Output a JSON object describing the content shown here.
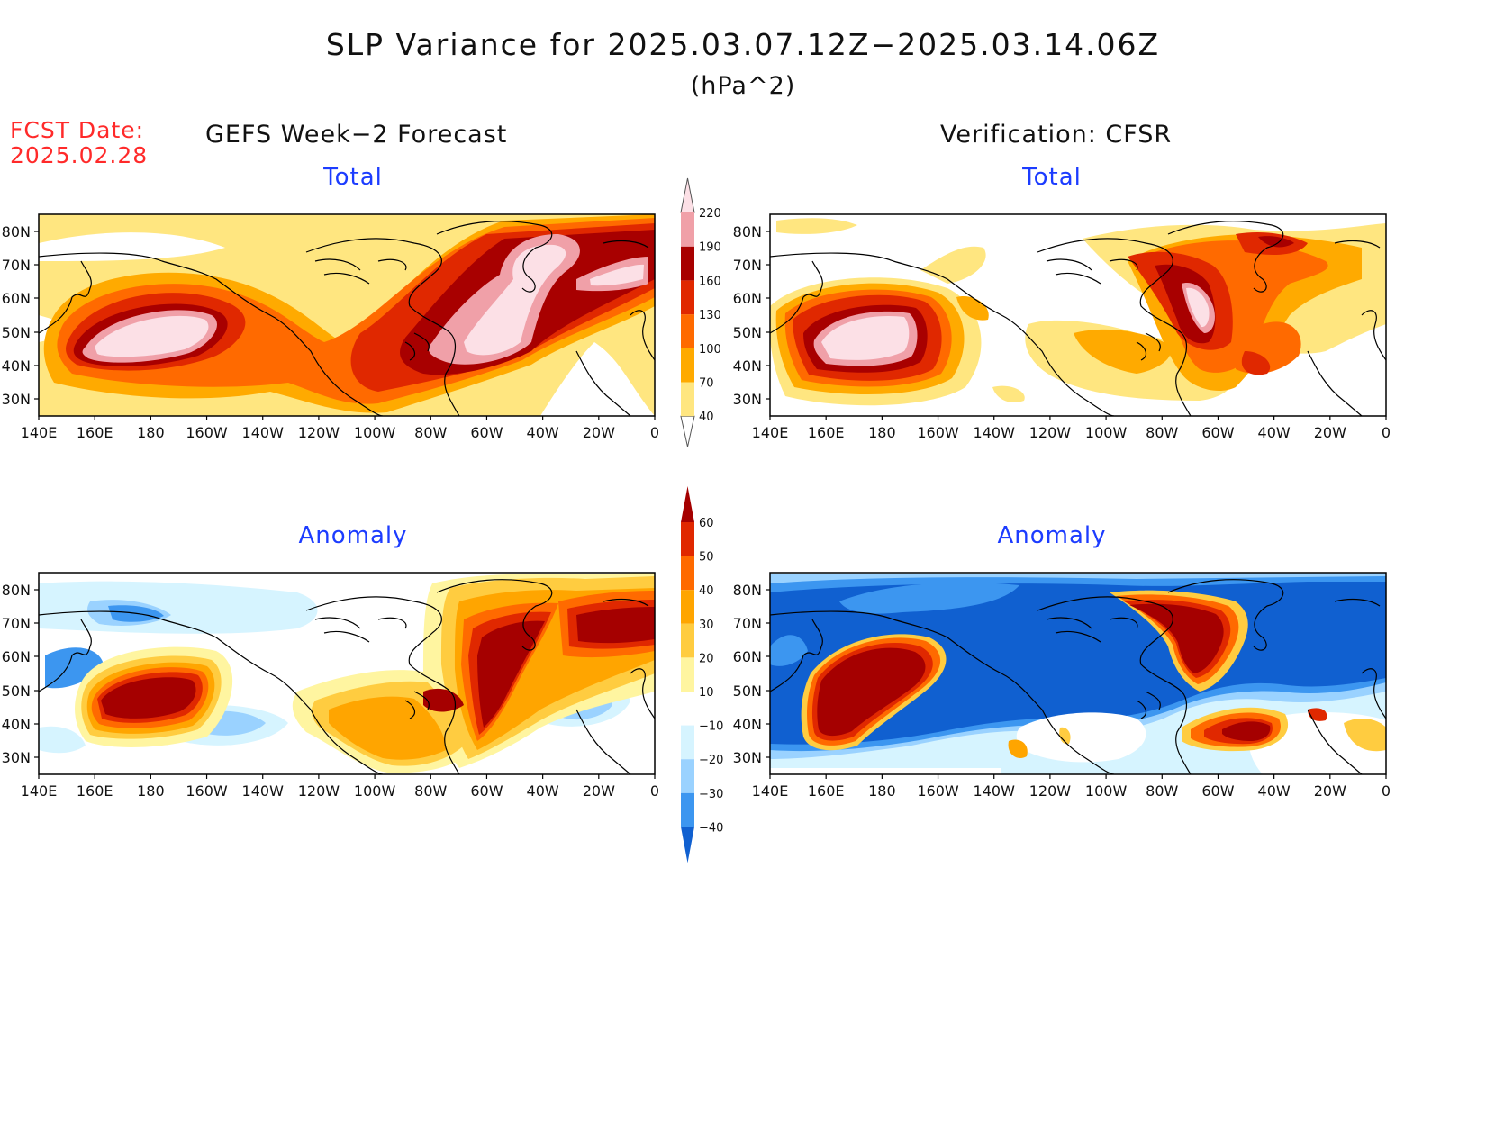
{
  "title": "SLP Variance for 2025.03.07.12Z−2025.03.14.06Z",
  "units": "(hPa^2)",
  "fcst_date": {
    "label": "FCST Date:",
    "value": "2025.02.28"
  },
  "columns": {
    "left": "GEFS Week−2 Forecast",
    "right": "Verification: CFSR"
  },
  "panels": {
    "top_left": {
      "subtitle": "Total"
    },
    "top_right": {
      "subtitle": "Total"
    },
    "bottom_left": {
      "subtitle": "Anomaly"
    },
    "bottom_right": {
      "subtitle": "Anomaly"
    }
  },
  "axes": {
    "lat_labels": [
      "80N",
      "70N",
      "60N",
      "50N",
      "40N",
      "30N"
    ],
    "lon_labels": [
      "140E",
      "160E",
      "180",
      "160W",
      "140W",
      "120W",
      "100W",
      "80W",
      "60W",
      "40W",
      "20W",
      "0"
    ]
  },
  "colorbars": {
    "total": {
      "levels": [
        "40",
        "70",
        "100",
        "130",
        "160",
        "190",
        "220"
      ],
      "colors": [
        "#ffe680",
        "#ffaa00",
        "#ff6a00",
        "#e02800",
        "#a80000",
        "#f0a0a8",
        "#fce0e6"
      ]
    },
    "anomaly": {
      "levels": [
        "60",
        "50",
        "40",
        "30",
        "20",
        "10",
        "−10",
        "−20",
        "−30",
        "−40"
      ],
      "colors": [
        "#a50000",
        "#e02800",
        "#ff6a00",
        "#ffa500",
        "#ffcc40",
        "#fff5a0",
        "#ffffff",
        "#d6f4ff",
        "#9ad2ff",
        "#3c96f0",
        "#1060d0"
      ]
    }
  }
}
